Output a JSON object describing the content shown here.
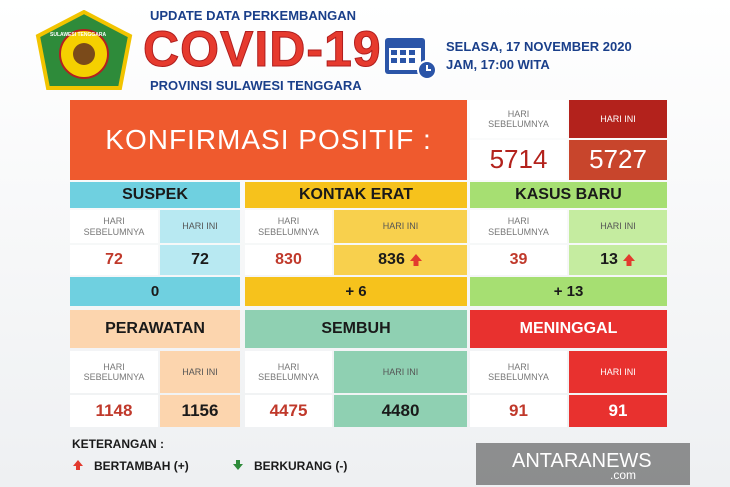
{
  "header": {
    "logo_text": "SULAWESI TENGGARA",
    "top": "UPDATE DATA PERKEMBANGAN",
    "title": "COVID-19",
    "bottom": "PROVINSI SULAWESI TENGGARA",
    "date": "SELASA, 17 NOVEMBER 2020",
    "time": "JAM, 17:00 WITA"
  },
  "konfirmasi": {
    "label": "KONFIRMASI POSITIF :",
    "prev_label": "HARI SEBELUMNYA",
    "today_label": "HARI INI",
    "prev": 5714,
    "today": 5727
  },
  "suspek": {
    "title": "SUSPEK",
    "prev_label": "HARI SEBELUMNYA",
    "today_label": "HARI INI",
    "prev": 72,
    "today": 72,
    "diff": "0"
  },
  "kontak_erat": {
    "title": "KONTAK ERAT",
    "prev_label": "HARI SEBELUMNYA",
    "today_label": "HARI INI",
    "prev": 830,
    "today": 836,
    "diff": "+ 6"
  },
  "kasus_baru": {
    "title": "KASUS BARU",
    "prev_label": "HARI SEBELUMNYA",
    "today_label": "HARI INI",
    "prev": 39,
    "today": 13,
    "diff": "+ 13"
  },
  "perawatan": {
    "title": "PERAWATAN",
    "prev_label": "HARI SEBELUMNYA",
    "today_label": "HARI INI",
    "prev": 1148,
    "today": 1156
  },
  "sembuh": {
    "title": "SEMBUH",
    "prev_label": "HARI SEBELUMNYA",
    "today_label": "HARI INI",
    "prev": 4475,
    "today": 4480
  },
  "meninggal": {
    "title": "MENINGGAL",
    "prev_label": "HARI SEBELUMNYA",
    "today_label": "HARI INI",
    "prev": 91,
    "today": 91
  },
  "keterangan": {
    "title": "KETERANGAN :",
    "up": "BERTAMBAH (+)",
    "down": "BERKURANG (-)"
  },
  "watermark": {
    "brand": "ANTARANEWS",
    "domain": ".com"
  }
}
